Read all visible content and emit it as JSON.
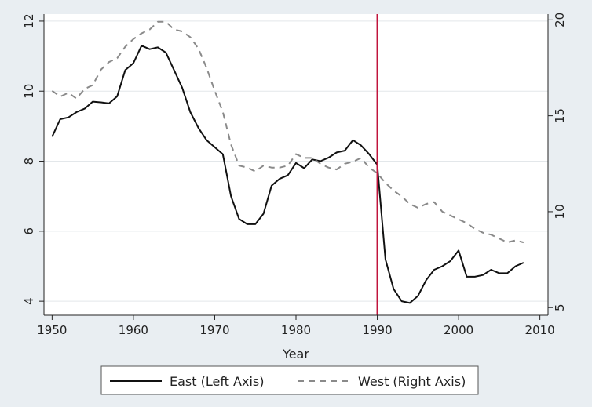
{
  "chart_data": {
    "type": "line",
    "title": "",
    "xlabel": "Year",
    "ylabel_left": "",
    "ylabel_right": "",
    "xlim": [
      1949,
      2011
    ],
    "ylim_left": [
      3.6,
      12.2
    ],
    "ylim_right": [
      4.6,
      20.3
    ],
    "xticks": [
      "1950",
      "1960",
      "1970",
      "1980",
      "1990",
      "2000",
      "2010"
    ],
    "yticks_left": [
      "4",
      "6",
      "8",
      "10",
      "12"
    ],
    "yticks_right": [
      "5",
      "10",
      "15",
      "20"
    ],
    "grid": true,
    "vertical_line": {
      "x": 1990,
      "color": "#c0143c"
    },
    "legend_position": "bottom",
    "series": [
      {
        "name": "East (Left Axis)",
        "axis": "left",
        "color": "#111111",
        "dash": "solid",
        "x": [
          1950,
          1951,
          1952,
          1953,
          1954,
          1955,
          1956,
          1957,
          1958,
          1959,
          1960,
          1961,
          1962,
          1963,
          1964,
          1965,
          1966,
          1967,
          1968,
          1969,
          1970,
          1971,
          1972,
          1973,
          1974,
          1975,
          1976,
          1977,
          1978,
          1979,
          1980,
          1981,
          1982,
          1983,
          1984,
          1985,
          1986,
          1987,
          1988,
          1989,
          1990,
          1991,
          1992,
          1993,
          1994,
          1995,
          1996,
          1997,
          1998,
          1999,
          2000,
          2001,
          2002,
          2003,
          2004,
          2005,
          2006,
          2007,
          2008
        ],
        "y": [
          8.7,
          9.2,
          9.25,
          9.4,
          9.5,
          9.7,
          9.68,
          9.65,
          9.85,
          10.6,
          10.8,
          11.3,
          11.2,
          11.25,
          11.1,
          10.6,
          10.1,
          9.4,
          8.95,
          8.6,
          8.4,
          8.2,
          7.0,
          6.35,
          6.2,
          6.2,
          6.5,
          7.3,
          7.5,
          7.6,
          7.95,
          7.8,
          8.05,
          8.0,
          8.1,
          8.25,
          8.3,
          8.6,
          8.45,
          8.2,
          7.9,
          5.2,
          4.35,
          4.0,
          3.95,
          4.15,
          4.6,
          4.9,
          5.0,
          5.15,
          5.45,
          4.7,
          4.7,
          4.75,
          4.9,
          4.8,
          4.8,
          5.0,
          5.1
        ]
      },
      {
        "name": "West (Right Axis)",
        "axis": "right",
        "color": "#8a8a8a",
        "dash": "dashed",
        "x": [
          1950,
          1951,
          1952,
          1953,
          1954,
          1955,
          1956,
          1957,
          1958,
          1959,
          1960,
          1961,
          1962,
          1963,
          1964,
          1965,
          1966,
          1967,
          1968,
          1969,
          1970,
          1971,
          1972,
          1973,
          1974,
          1975,
          1976,
          1977,
          1978,
          1979,
          1980,
          1981,
          1982,
          1983,
          1984,
          1985,
          1986,
          1987,
          1988,
          1989,
          1990,
          1991,
          1992,
          1993,
          1994,
          1995,
          1996,
          1997,
          1998,
          1999,
          2000,
          2001,
          2002,
          2003,
          2004,
          2005,
          2006,
          2007,
          2008
        ],
        "y": [
          16.3,
          16.0,
          16.2,
          15.9,
          16.4,
          16.6,
          17.4,
          17.8,
          18.0,
          18.6,
          19.0,
          19.3,
          19.5,
          19.9,
          19.9,
          19.5,
          19.4,
          19.1,
          18.5,
          17.5,
          16.3,
          15.2,
          13.5,
          12.4,
          12.3,
          12.1,
          12.4,
          12.3,
          12.3,
          12.4,
          13.0,
          12.8,
          12.8,
          12.5,
          12.3,
          12.2,
          12.5,
          12.6,
          12.8,
          12.3,
          12.0,
          11.5,
          11.1,
          10.8,
          10.4,
          10.2,
          10.4,
          10.5,
          10.0,
          9.8,
          9.6,
          9.4,
          9.1,
          8.9,
          8.8,
          8.6,
          8.4,
          8.5,
          8.4
        ]
      }
    ]
  }
}
